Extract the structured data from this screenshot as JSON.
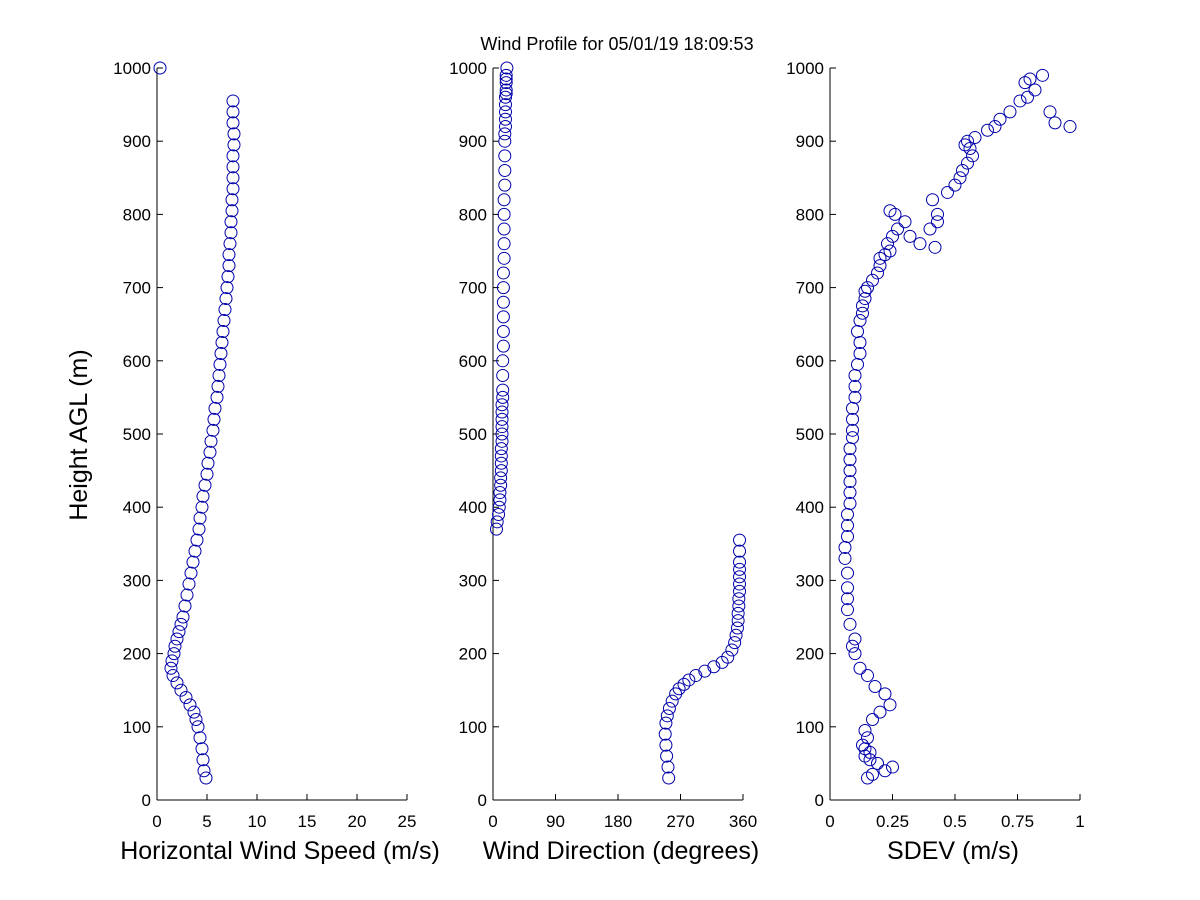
{
  "title": "Wind Profile for  05/01/19 18:09:53",
  "colors": {
    "marker": "#0000aa",
    "axis": "#000000",
    "background": "#ffffff"
  },
  "chart_data": [
    {
      "type": "scatter",
      "id": "speed",
      "xlabel": "Horizontal Wind Speed (m/s)",
      "ylabel": "Height AGL (m)",
      "xlim": [
        0,
        25
      ],
      "ylim": [
        0,
        1000
      ],
      "xticks": [
        "0",
        "5",
        "10",
        "15",
        "20",
        "25"
      ],
      "yticks": [
        "0",
        "100",
        "200",
        "300",
        "400",
        "500",
        "600",
        "700",
        "800",
        "900",
        "1000"
      ],
      "x": [
        4.9,
        4.7,
        4.6,
        4.5,
        4.3,
        4.1,
        3.9,
        3.7,
        3.3,
        2.9,
        2.4,
        2.0,
        1.6,
        1.4,
        1.5,
        1.7,
        1.8,
        2.0,
        2.2,
        2.4,
        2.6,
        2.8,
        3.0,
        3.2,
        3.4,
        3.6,
        3.8,
        4.0,
        4.2,
        4.3,
        4.5,
        4.6,
        4.8,
        5.0,
        5.1,
        5.3,
        5.4,
        5.6,
        5.7,
        5.8,
        6.0,
        6.1,
        6.2,
        6.3,
        6.4,
        6.5,
        6.6,
        6.7,
        6.8,
        6.9,
        7.0,
        7.1,
        7.2,
        7.2,
        7.3,
        7.4,
        7.4,
        7.5,
        7.5,
        7.6,
        7.6,
        7.6,
        7.6,
        7.7,
        7.7,
        7.6,
        7.6,
        7.6,
        0.3
      ],
      "y": [
        30,
        40,
        55,
        70,
        85,
        100,
        110,
        120,
        130,
        140,
        150,
        160,
        170,
        180,
        190,
        200,
        210,
        220,
        230,
        240,
        250,
        265,
        280,
        295,
        310,
        325,
        340,
        355,
        370,
        385,
        400,
        415,
        430,
        445,
        460,
        475,
        490,
        505,
        520,
        535,
        550,
        565,
        580,
        595,
        610,
        625,
        640,
        655,
        670,
        685,
        700,
        715,
        730,
        745,
        760,
        775,
        790,
        805,
        820,
        835,
        850,
        865,
        880,
        895,
        910,
        925,
        940,
        955,
        1000
      ]
    },
    {
      "type": "scatter",
      "id": "direction",
      "xlabel": "Wind Direction (degrees)",
      "xlim": [
        0,
        360
      ],
      "ylim": [
        0,
        1000
      ],
      "xticks": [
        "0",
        "90",
        "180",
        "270",
        "360"
      ],
      "yticks": [
        "0",
        "100",
        "200",
        "300",
        "400",
        "500",
        "600",
        "700",
        "800",
        "900",
        "1000"
      ],
      "x": [
        253,
        252,
        250,
        249,
        248,
        249,
        251,
        254,
        258,
        263,
        268,
        275,
        282,
        292,
        305,
        318,
        330,
        338,
        344,
        348,
        350,
        352,
        353,
        353,
        354,
        354,
        355,
        355,
        355,
        355,
        355,
        355,
        355,
        5,
        6,
        8,
        9,
        10,
        10,
        11,
        11,
        12,
        12,
        12,
        12,
        13,
        13,
        13,
        13,
        13,
        13,
        14,
        14,
        14,
        14,
        15,
        15,
        15,
        15,
        15,
        15,
        16,
        16,
        16,
        16,
        16,
        17,
        17,
        17,
        17,
        17,
        18,
        18,
        18,
        18,
        18,
        19,
        19,
        19,
        19,
        19,
        20
      ],
      "y": [
        30,
        45,
        60,
        75,
        90,
        105,
        115,
        125,
        135,
        145,
        152,
        158,
        164,
        170,
        176,
        182,
        188,
        195,
        205,
        215,
        225,
        235,
        245,
        255,
        265,
        275,
        285,
        295,
        305,
        315,
        325,
        340,
        355,
        370,
        380,
        390,
        400,
        410,
        420,
        430,
        440,
        450,
        460,
        470,
        480,
        490,
        500,
        510,
        520,
        530,
        540,
        550,
        560,
        580,
        600,
        620,
        640,
        660,
        680,
        700,
        720,
        740,
        760,
        780,
        800,
        820,
        840,
        860,
        880,
        900,
        910,
        920,
        930,
        940,
        950,
        960,
        965,
        970,
        980,
        985,
        990,
        1000
      ]
    },
    {
      "type": "scatter",
      "id": "sdev",
      "xlabel": "SDEV  (m/s)",
      "xlim": [
        0,
        1
      ],
      "ylim": [
        0,
        1000
      ],
      "xticks": [
        "0",
        "0.25",
        "0.5",
        "0.75",
        "1"
      ],
      "yticks": [
        "0",
        "100",
        "200",
        "300",
        "400",
        "500",
        "600",
        "700",
        "800",
        "900",
        "1000"
      ],
      "x": [
        0.15,
        0.17,
        0.22,
        0.25,
        0.19,
        0.16,
        0.14,
        0.16,
        0.14,
        0.13,
        0.15,
        0.14,
        0.17,
        0.2,
        0.24,
        0.22,
        0.18,
        0.15,
        0.12,
        0.1,
        0.09,
        0.1,
        0.08,
        0.07,
        0.07,
        0.07,
        0.07,
        0.06,
        0.06,
        0.07,
        0.07,
        0.07,
        0.08,
        0.08,
        0.08,
        0.08,
        0.08,
        0.08,
        0.09,
        0.09,
        0.09,
        0.09,
        0.1,
        0.1,
        0.1,
        0.11,
        0.12,
        0.12,
        0.11,
        0.12,
        0.13,
        0.13,
        0.14,
        0.14,
        0.15,
        0.17,
        0.19,
        0.2,
        0.2,
        0.22,
        0.24,
        0.23,
        0.25,
        0.27,
        0.3,
        0.26,
        0.24,
        0.32,
        0.36,
        0.42,
        0.43,
        0.4,
        0.43,
        0.41,
        0.47,
        0.5,
        0.52,
        0.53,
        0.55,
        0.57,
        0.56,
        0.54,
        0.55,
        0.58,
        0.63,
        0.66,
        0.68,
        0.72,
        0.76,
        0.79,
        0.82,
        0.78,
        0.8,
        0.85,
        0.88,
        0.9,
        0.96
      ],
      "y": [
        30,
        35,
        40,
        45,
        50,
        55,
        60,
        65,
        70,
        75,
        85,
        95,
        110,
        120,
        130,
        145,
        155,
        170,
        180,
        200,
        210,
        220,
        240,
        260,
        275,
        290,
        310,
        330,
        345,
        360,
        375,
        390,
        405,
        420,
        435,
        450,
        465,
        480,
        495,
        505,
        520,
        535,
        550,
        565,
        580,
        595,
        610,
        625,
        640,
        655,
        665,
        675,
        685,
        695,
        700,
        710,
        720,
        730,
        740,
        745,
        750,
        760,
        770,
        780,
        790,
        800,
        805,
        770,
        760,
        755,
        790,
        780,
        800,
        820,
        830,
        840,
        850,
        860,
        870,
        880,
        890,
        895,
        900,
        905,
        915,
        920,
        930,
        940,
        955,
        960,
        970,
        980,
        985,
        990,
        940,
        925,
        920
      ]
    }
  ]
}
